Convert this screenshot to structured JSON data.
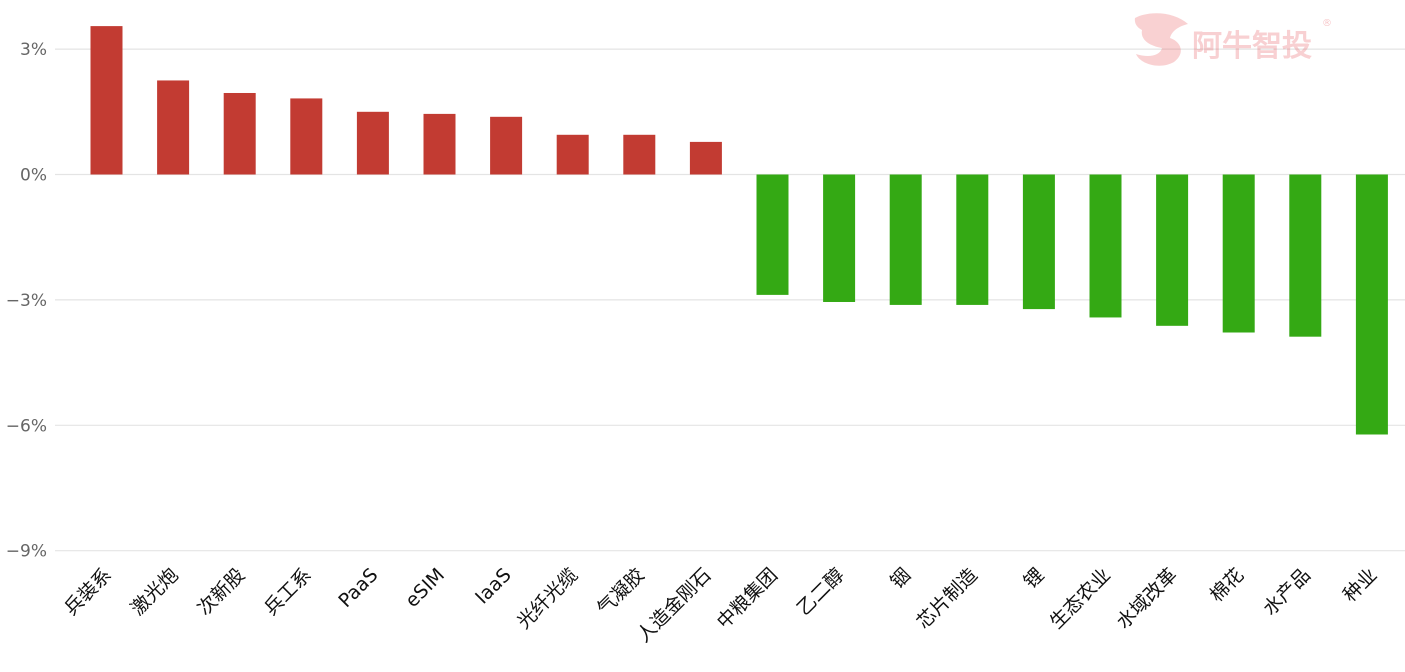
{
  "chart_data": {
    "type": "bar",
    "categories": [
      "兵装系",
      "激光炮",
      "次新股",
      "兵工系",
      "PaaS",
      "eSIM",
      "IaaS",
      "光纤光缆",
      "气凝胶",
      "人造金刚石",
      "中粮集团",
      "乙二醇",
      "铟",
      "芯片制造",
      "锂",
      "生态农业",
      "水域改革",
      "棉花",
      "水产品",
      "种业"
    ],
    "values": [
      3.55,
      2.25,
      1.95,
      1.82,
      1.5,
      1.45,
      1.38,
      0.95,
      0.95,
      0.78,
      -2.88,
      -3.05,
      -3.12,
      -3.12,
      -3.22,
      -3.42,
      -3.62,
      -3.78,
      -3.88,
      -6.22
    ],
    "ylim": [
      -9,
      3.6
    ],
    "yticks": [
      3,
      0,
      -3,
      -6,
      -9
    ],
    "ytick_labels": [
      "3%",
      "0%",
      "−3%",
      "−6%",
      "−9%"
    ],
    "colors": {
      "positive": "#c23b32",
      "negative": "#34a914"
    },
    "grid": true
  },
  "watermark": {
    "text": "阿牛智投",
    "mark": "®"
  }
}
